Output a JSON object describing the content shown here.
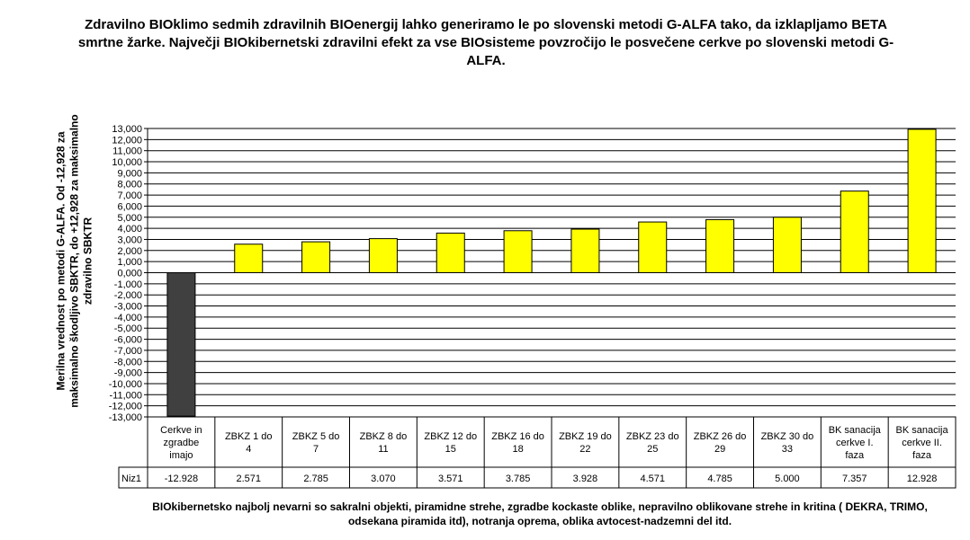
{
  "chart_data": {
    "type": "bar",
    "title": "Zdravilno BIOklimo sedmih zdravilnih BIOenergij lahko generiramo le po slovenski metodi G-ALFA tako, da izklapljamo BETA smrtne žarke. Največji BIOkibernetski zdravilni efekt za vse BIOsisteme povzročijo le posvečene cerkve po slovenski metodi G-ALFA.",
    "ylabel": "Merilna vrednost po metodi G-ALFA. Od -12,928 za maksimalno škodljivo SBKTR, do +12,928 za maksimalno zdravilno SBKTR",
    "xlabel": "BIOkibernetsko najbolj nevarni so sakralni objekti, piramidne strehe, zgradbe kockaste oblike, nepravilno oblikovane strehe in kritina ( DEKRA, TRIMO, odsekana piramida itd), notranja oprema, oblika avtocest-nadzemni del itd.",
    "ylim": [
      -13000,
      13000
    ],
    "ytick_step": 1000,
    "ytick_labels": [
      "-13,000",
      "-12,000",
      "-11,000",
      "-10,000",
      "-9,000",
      "-8,000",
      "-7,000",
      "-6,000",
      "-5,000",
      "-4,000",
      "-3,000",
      "-2,000",
      "-1,000",
      "0,000",
      "1,000",
      "2,000",
      "3,000",
      "4,000",
      "5,000",
      "6,000",
      "7,000",
      "8,000",
      "9,000",
      "10,000",
      "11,000",
      "12,000",
      "13,000"
    ],
    "grid": true,
    "data_table": true,
    "categories": [
      [
        "Cerkve in",
        "zgradbe",
        "imajo"
      ],
      [
        "ZBKZ 1 do",
        "4"
      ],
      [
        "ZBKZ 5 do",
        "7"
      ],
      [
        "ZBKZ 8 do",
        "11"
      ],
      [
        "ZBKZ 12 do",
        "15"
      ],
      [
        "ZBKZ 16 do",
        "18"
      ],
      [
        "ZBKZ 19 do",
        "22"
      ],
      [
        "ZBKZ 23 do",
        "25"
      ],
      [
        "ZBKZ 26 do",
        "29"
      ],
      [
        "ZBKZ 30 do",
        "33"
      ],
      [
        "BK sanacija",
        "cerkve I.",
        "faza"
      ],
      [
        "BK sanacija",
        "cerkve II.",
        "faza"
      ]
    ],
    "series": [
      {
        "name": "Niz1",
        "values": [
          -12.928,
          2.571,
          2.785,
          3.07,
          3.571,
          3.785,
          3.928,
          4.571,
          4.785,
          5.0,
          7.357,
          12.928
        ],
        "value_labels": [
          "-12.928",
          "2.571",
          "2.785",
          "3.070",
          "3.571",
          "3.785",
          "3.928",
          "4.571",
          "4.785",
          "5.000",
          "7.357",
          "12.928"
        ]
      }
    ],
    "bar_colors": {
      "positive": "#ffff00",
      "negative": "#404040",
      "outline": "#000000"
    },
    "side_mark": "."
  }
}
